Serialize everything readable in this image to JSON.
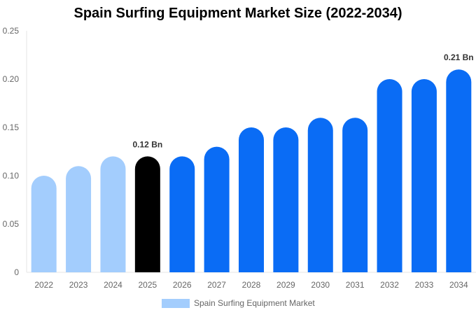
{
  "chart_data": {
    "type": "bar",
    "title": "Spain Surfing Equipment Market Size (2022-2034)",
    "xlabel": "",
    "ylabel": "",
    "categories": [
      "2022",
      "2023",
      "2024",
      "2025",
      "2026",
      "2027",
      "2028",
      "2029",
      "2030",
      "2031",
      "2032",
      "2033",
      "2034"
    ],
    "series": [
      {
        "name": "Spain Surfing Equipment Market",
        "values": [
          0.1,
          0.11,
          0.12,
          0.12,
          0.12,
          0.13,
          0.15,
          0.15,
          0.16,
          0.16,
          0.2,
          0.2,
          0.21
        ]
      }
    ],
    "ylim": [
      0,
      0.25
    ],
    "yticks": [
      "0",
      "0.05",
      "0.10",
      "0.15",
      "0.20",
      "0.25"
    ],
    "data_labels": [
      {
        "category": "2025",
        "text": "0.12 Bn"
      },
      {
        "category": "2034",
        "text": "0.21 Bn"
      }
    ],
    "bar_colors": {
      "historical": "#a3cdfd",
      "current": "#000000",
      "forecast": "#0a6cf5"
    },
    "historical_categories": [
      "2022",
      "2023",
      "2024"
    ],
    "current_category": "2025",
    "legend": {
      "position": "bottom",
      "color": "#a3cdfd"
    },
    "grid": false
  }
}
